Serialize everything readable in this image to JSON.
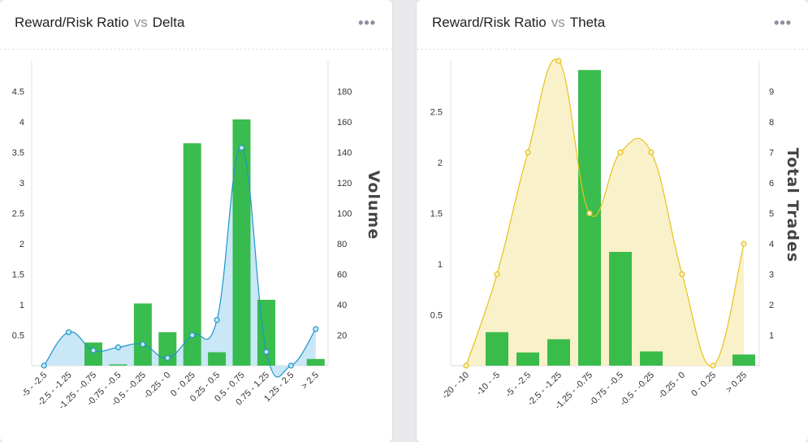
{
  "panels": [
    {
      "title_left": "Reward/Risk Ratio",
      "vs": "vs",
      "title_right": "Delta",
      "menu_label": "•••"
    },
    {
      "title_left": "Reward/Risk Ratio",
      "vs": "vs",
      "title_right": "Theta",
      "menu_label": "•••"
    }
  ],
  "chart_data": [
    {
      "type": "bar",
      "categories": [
        "-5 - -2.5",
        "-2.5 - -1.25",
        "-1.25 - -0.75",
        "-0.75 - -0.5",
        "-0.5 - -0.25",
        "-0.25 - 0",
        "0 - 0.25",
        "0.25 - 0.5",
        "0.5 - 0.75",
        "0.75 - 1.25",
        "1.25 - 2.5",
        "> 2.5"
      ],
      "series": [
        {
          "kind": "bar",
          "axis": "left",
          "color": "#2fb844",
          "values": [
            0,
            0,
            0.38,
            0.02,
            1.02,
            0.55,
            3.65,
            0.22,
            4.04,
            1.08,
            0,
            0.11
          ]
        },
        {
          "kind": "area",
          "axis": "right",
          "color": "#1e96c8",
          "fill": "#c6e6f5",
          "values": [
            0,
            22,
            10,
            12,
            14,
            5,
            20,
            30,
            143,
            9,
            0,
            24
          ]
        }
      ],
      "yticks_left": [
        "0.5",
        "1",
        "1.5",
        "2",
        "2.5",
        "3",
        "3.5",
        "4",
        "4.5"
      ],
      "yticks_left_values": [
        0.5,
        1,
        1.5,
        2,
        2.5,
        3,
        3.5,
        4,
        4.5
      ],
      "yticks_right": [
        "20",
        "40",
        "60",
        "80",
        "100",
        "120",
        "140",
        "160",
        "180"
      ],
      "yticks_right_values": [
        20,
        40,
        60,
        80,
        100,
        120,
        140,
        160,
        180
      ],
      "ylim_left": [
        0,
        5
      ],
      "ylim_right": [
        0,
        200
      ],
      "ylabel_right": "Volume"
    },
    {
      "type": "bar",
      "categories": [
        "-20 - -10",
        "-10 - -5",
        "-5 - -2.5",
        "-2.5 - -1.25",
        "-1.25 - -0.75",
        "-0.75 - -0.5",
        "-0.5 - -0.25",
        "-0.25 - 0",
        "0 - 0.25",
        "> 0.25"
      ],
      "series": [
        {
          "kind": "bar",
          "axis": "left",
          "color": "#2fb844",
          "values": [
            0,
            0.33,
            0.13,
            0.26,
            2.91,
            1.12,
            0.14,
            0,
            0,
            0.11
          ]
        },
        {
          "kind": "area",
          "axis": "right",
          "color": "#e6c21a",
          "fill": "#f9f0c6",
          "values": [
            0,
            3,
            7,
            10,
            5,
            7,
            7,
            3,
            0,
            4
          ]
        }
      ],
      "yticks_left": [
        "0.5",
        "1",
        "1.5",
        "2",
        "2.5"
      ],
      "yticks_left_values": [
        0.5,
        1,
        1.5,
        2,
        2.5
      ],
      "yticks_right": [
        "1",
        "2",
        "3",
        "4",
        "5",
        "6",
        "7",
        "8",
        "9"
      ],
      "yticks_right_values": [
        1,
        2,
        3,
        4,
        5,
        6,
        7,
        8,
        9
      ],
      "ylim_left": [
        0,
        3
      ],
      "ylim_right": [
        0,
        10
      ],
      "ylabel_right": "Total Trades"
    }
  ]
}
